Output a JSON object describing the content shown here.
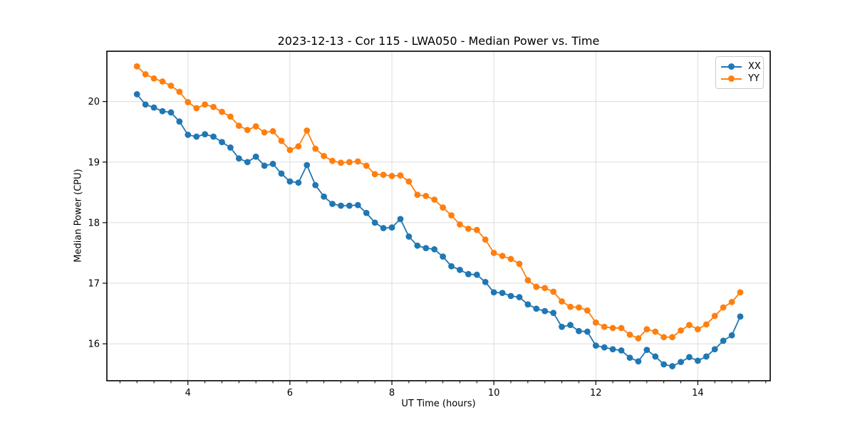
{
  "chart_data": {
    "type": "line",
    "title": "2023-12-13 - Cor 115 - LWA050 - Median Power vs. Time",
    "xlabel": "UT Time (hours)",
    "ylabel": "Median Power (CPU)",
    "xlim": [
      2.41,
      15.42
    ],
    "ylim": [
      15.39,
      20.83
    ],
    "x_major_ticks": [
      4,
      6,
      8,
      10,
      12,
      14
    ],
    "x_minor_tick_step": 0.33333,
    "y_major_ticks": [
      16,
      17,
      18,
      19,
      20
    ],
    "grid": true,
    "legend_position": "upper right",
    "x": [
      3.0,
      3.167,
      3.333,
      3.5,
      3.667,
      3.833,
      4.0,
      4.167,
      4.333,
      4.5,
      4.667,
      4.833,
      5.0,
      5.167,
      5.333,
      5.5,
      5.667,
      5.833,
      6.0,
      6.167,
      6.333,
      6.5,
      6.667,
      6.833,
      7.0,
      7.167,
      7.333,
      7.5,
      7.667,
      7.833,
      8.0,
      8.167,
      8.333,
      8.5,
      8.667,
      8.833,
      9.0,
      9.167,
      9.333,
      9.5,
      9.667,
      9.833,
      10.0,
      10.167,
      10.333,
      10.5,
      10.667,
      10.833,
      11.0,
      11.167,
      11.333,
      11.5,
      11.667,
      11.833,
      12.0,
      12.167,
      12.333,
      12.5,
      12.667,
      12.833,
      13.0,
      13.167,
      13.333,
      13.5,
      13.667,
      13.833,
      14.0,
      14.167,
      14.333,
      14.5,
      14.667,
      14.833
    ],
    "series": [
      {
        "name": "XX",
        "color": "#1f77b4",
        "values": [
          20.12,
          19.95,
          19.9,
          19.84,
          19.82,
          19.67,
          19.45,
          19.42,
          19.46,
          19.42,
          19.33,
          19.24,
          19.06,
          19.0,
          19.09,
          18.94,
          18.97,
          18.81,
          18.68,
          18.66,
          18.95,
          18.62,
          18.43,
          18.31,
          18.28,
          18.28,
          18.29,
          18.16,
          18.0,
          17.91,
          17.92,
          18.06,
          17.77,
          17.62,
          17.58,
          17.56,
          17.44,
          17.28,
          17.22,
          17.15,
          17.14,
          17.02,
          16.85,
          16.84,
          16.79,
          16.77,
          16.65,
          16.58,
          16.54,
          16.51,
          16.28,
          16.31,
          16.21,
          16.2,
          15.97,
          15.94,
          15.91,
          15.89,
          15.77,
          15.71,
          15.9,
          15.79,
          15.66,
          15.63,
          15.7,
          15.78,
          15.72,
          15.79,
          15.91,
          16.05,
          16.14,
          16.45
        ]
      },
      {
        "name": "YY",
        "color": "#ff7f0e",
        "values": [
          20.58,
          20.45,
          20.38,
          20.33,
          20.26,
          20.16,
          19.99,
          19.89,
          19.95,
          19.91,
          19.83,
          19.75,
          19.6,
          19.53,
          19.59,
          19.49,
          19.51,
          19.35,
          19.2,
          19.26,
          19.52,
          19.22,
          19.1,
          19.02,
          18.99,
          19.0,
          19.01,
          18.94,
          18.8,
          18.79,
          18.77,
          18.78,
          18.68,
          18.46,
          18.44,
          18.38,
          18.25,
          18.12,
          17.97,
          17.9,
          17.88,
          17.72,
          17.5,
          17.45,
          17.4,
          17.32,
          17.05,
          16.94,
          16.92,
          16.86,
          16.7,
          16.61,
          16.6,
          16.55,
          16.35,
          16.28,
          16.26,
          16.26,
          16.15,
          16.09,
          16.24,
          16.2,
          16.11,
          16.11,
          16.22,
          16.31,
          16.24,
          16.32,
          16.46,
          16.6,
          16.69,
          16.85
        ]
      }
    ],
    "style": {
      "grid_color": "#dcdcdc",
      "frame_color": "#000000",
      "tick_color": "#000000",
      "background": "#ffffff"
    }
  }
}
